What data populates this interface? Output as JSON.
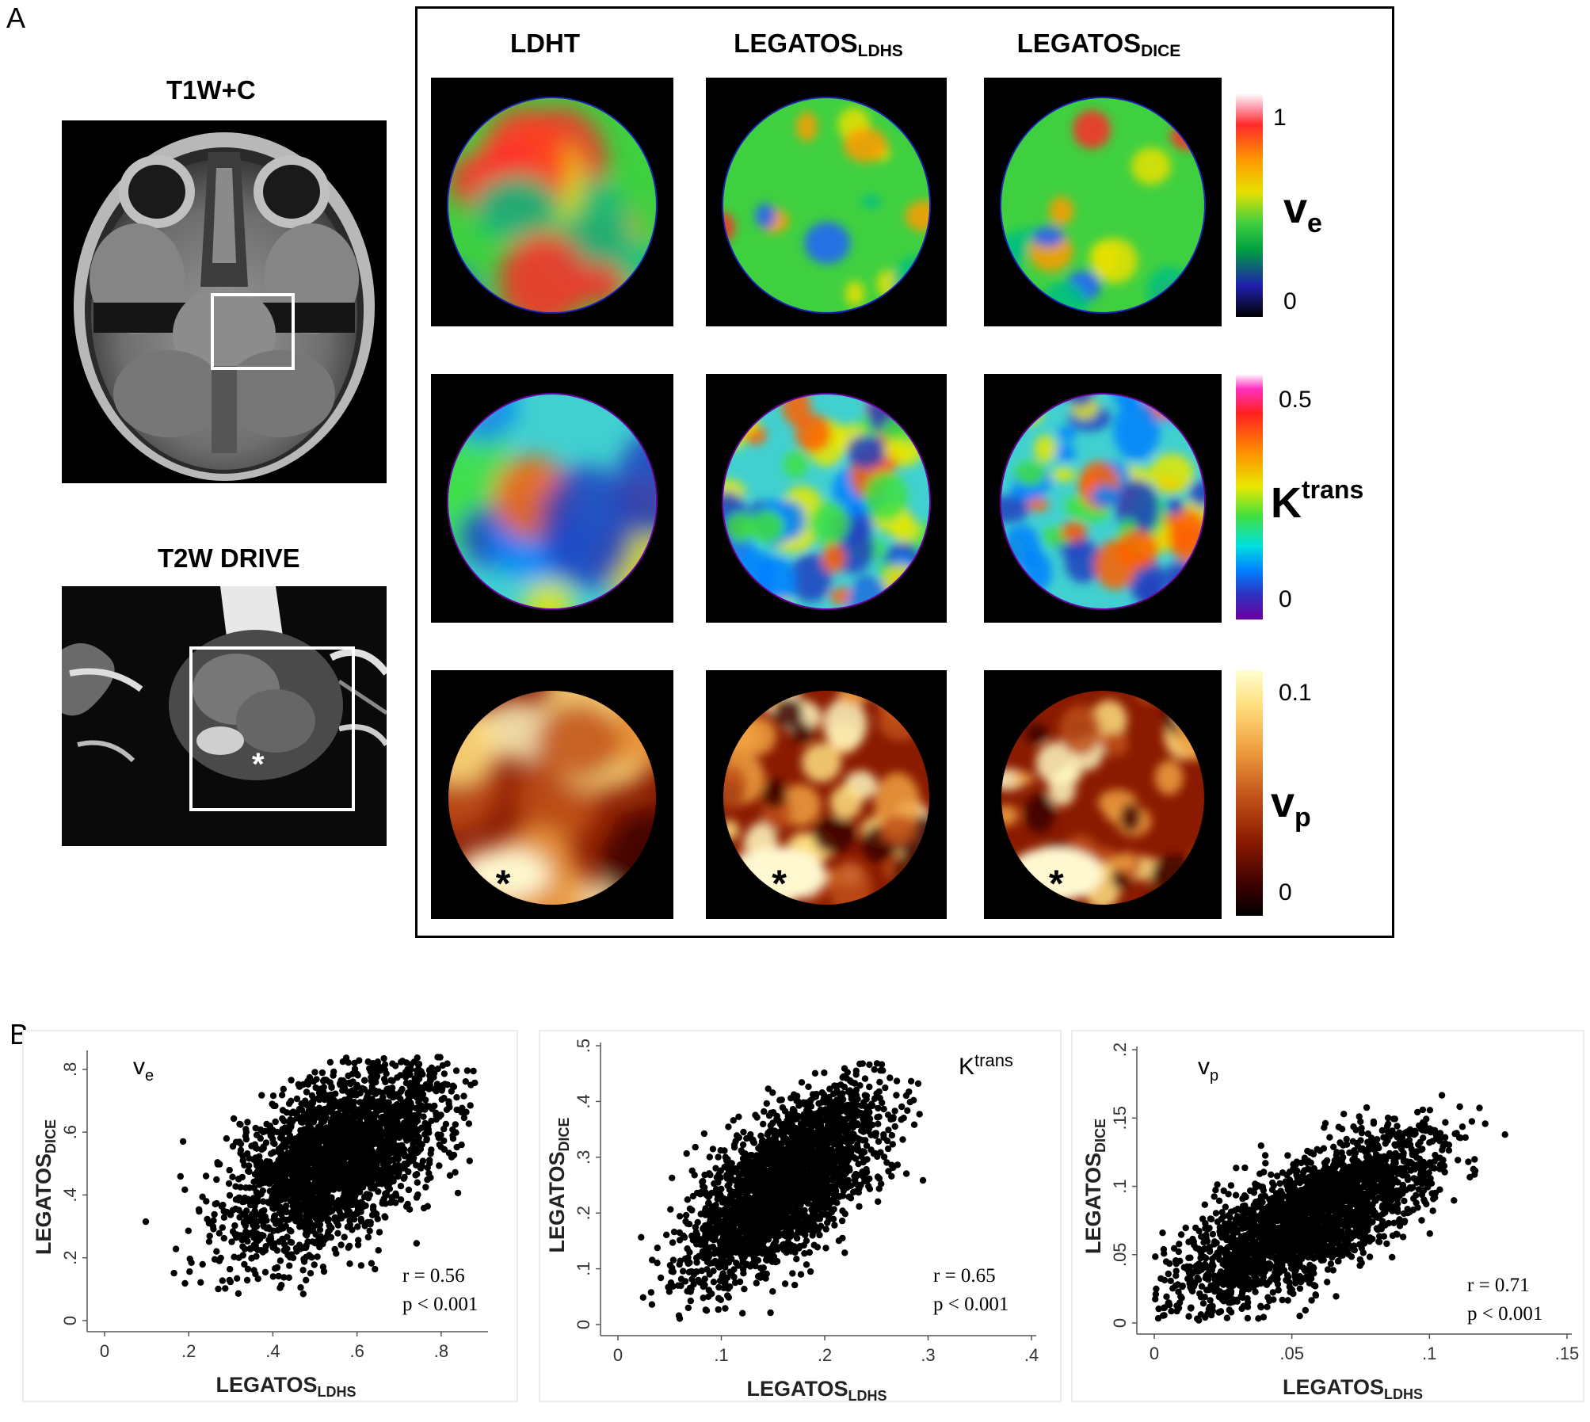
{
  "panel_a": {
    "label": "A",
    "t1_title": "T1W+C",
    "t2_title": "T2W DRIVE",
    "asterisk": "*",
    "columns": [
      {
        "main": "LDHT",
        "sub": ""
      },
      {
        "main": "LEGATOS",
        "sub": "LDHS"
      },
      {
        "main": "LEGATOS",
        "sub": "DICE"
      }
    ],
    "colorbars": [
      {
        "param_main": "v",
        "param_sub": "e",
        "param_sup": "",
        "max_label": "1",
        "min_label": "0"
      },
      {
        "param_main": "K",
        "param_sub": "",
        "param_sup": "trans",
        "max_label": "0.5",
        "min_label": "0"
      },
      {
        "param_main": "v",
        "param_sub": "p",
        "param_sup": "",
        "max_label": "0.1",
        "min_label": "0"
      }
    ]
  },
  "panel_b": {
    "label": "B"
  },
  "chart_data": [
    {
      "type": "scatter",
      "title": "",
      "param_main": "v",
      "param_sub": "e",
      "param_sup": "",
      "xlabel_main": "LEGATOS",
      "xlabel_sub": "LDHS",
      "ylabel_main": "LEGATOS",
      "ylabel_sub": "DICE",
      "xlim": [
        0,
        0.9
      ],
      "ylim": [
        0,
        0.85
      ],
      "xticks": [
        0,
        0.2,
        0.4,
        0.6,
        0.8
      ],
      "xtick_labels": [
        "0",
        ".2",
        ".4",
        ".6",
        ".8"
      ],
      "yticks": [
        0,
        0.2,
        0.4,
        0.6,
        0.8
      ],
      "ytick_labels": [
        "0",
        ".2",
        ".4",
        ".6",
        ".8"
      ],
      "r_text": "r = 0.56",
      "p_text": "p < 0.001",
      "r": 0.56,
      "x_mean": 0.55,
      "x_sd": 0.13,
      "y_mean": 0.52,
      "y_sd": 0.15,
      "x_range": [
        0.08,
        0.88
      ],
      "y_range": [
        0.08,
        0.84
      ],
      "n_points": 2600
    },
    {
      "type": "scatter",
      "title": "",
      "param_main": "K",
      "param_sub": "",
      "param_sup": "trans",
      "xlabel_main": "LEGATOS",
      "xlabel_sub": "LDHS",
      "ylabel_main": "LEGATOS",
      "ylabel_sub": "DICE",
      "xlim": [
        0,
        0.4
      ],
      "ylim": [
        0,
        0.5
      ],
      "xticks": [
        0,
        0.1,
        0.2,
        0.3,
        0.4
      ],
      "xtick_labels": [
        "0",
        ".1",
        ".2",
        ".3",
        ".4"
      ],
      "yticks": [
        0,
        0.1,
        0.2,
        0.3,
        0.4,
        0.5
      ],
      "ytick_labels": [
        "0",
        ".1",
        ".2",
        ".3",
        ".4",
        ".5"
      ],
      "r_text": "r = 0.65",
      "p_text": "p < 0.001",
      "r": 0.65,
      "x_mean": 0.16,
      "x_sd": 0.045,
      "y_mean": 0.25,
      "y_sd": 0.085,
      "x_range": [
        0.01,
        0.3
      ],
      "y_range": [
        0.01,
        0.48
      ],
      "n_points": 2600
    },
    {
      "type": "scatter",
      "title": "",
      "param_main": "v",
      "param_sub": "p",
      "param_sup": "",
      "xlabel_main": "LEGATOS",
      "xlabel_sub": "LDHS",
      "ylabel_main": "LEGATOS",
      "ylabel_sub": "DICE",
      "xlim": [
        0,
        0.15
      ],
      "ylim": [
        0,
        0.2
      ],
      "xticks": [
        0,
        0.05,
        0.1,
        0.15
      ],
      "xtick_labels": [
        "0",
        ".05",
        ".1",
        ".15"
      ],
      "yticks": [
        0,
        0.05,
        0.1,
        0.15,
        0.2
      ],
      "ytick_labels": [
        "0",
        ".05",
        ".1",
        ".15",
        ".2"
      ],
      "r_text": "r = 0.71",
      "p_text": "p < 0.001",
      "r": 0.71,
      "x_mean": 0.055,
      "x_sd": 0.022,
      "y_mean": 0.075,
      "y_sd": 0.03,
      "x_range": [
        0.0,
        0.148
      ],
      "y_range": [
        0.0,
        0.198
      ],
      "n_points": 2600
    }
  ]
}
